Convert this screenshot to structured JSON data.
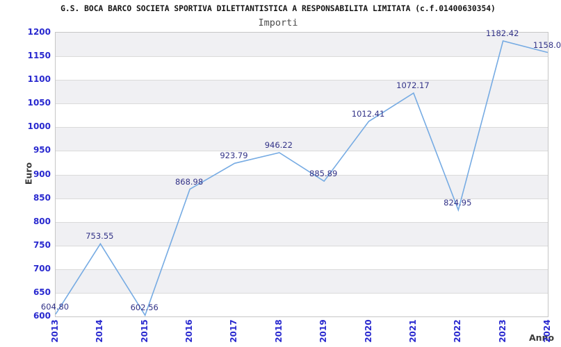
{
  "chart_data": {
    "type": "line",
    "title": "G.S. BOCA BARCO SOCIETA SPORTIVA DILETTANTISTICA A RESPONSABILITA LIMITATA (c.f.01400630354)",
    "subtitle": "Importi",
    "xlabel": "Anno",
    "ylabel": "Euro",
    "categories": [
      "2013",
      "2014",
      "2015",
      "2016",
      "2017",
      "2018",
      "2019",
      "2020",
      "2021",
      "2022",
      "2023",
      "2024"
    ],
    "values": [
      604.8,
      753.55,
      602.56,
      868.98,
      923.79,
      946.22,
      885.89,
      1012.41,
      1072.17,
      824.95,
      1182.42,
      1158.0
    ],
    "point_labels": [
      "604.80",
      "753.55",
      "602.56",
      "868.98",
      "923.79",
      "946.22",
      "885.89",
      "1012.41",
      "1072.17",
      "824.95",
      "1182.42",
      "1158.0"
    ],
    "ylim": [
      600,
      1200
    ],
    "ytick_step": 50,
    "ytick_labels": [
      "600",
      "650",
      "700",
      "750",
      "800",
      "850",
      "900",
      "950",
      "1000",
      "1050",
      "1100",
      "1150",
      "1200"
    ],
    "grid": "horizontal-only",
    "legend": "none",
    "plot_band_fill": "alternating"
  },
  "colors": {
    "line": "#76abe3",
    "tick_label": "#2929cf",
    "point_label": "#323287",
    "band": "#f0f0f3",
    "gridline": "#dadada",
    "plot_border": "#c6c6c6",
    "title": "#141414",
    "subtitle": "#4a4a4a",
    "axis_title": "#3a3a3a"
  }
}
